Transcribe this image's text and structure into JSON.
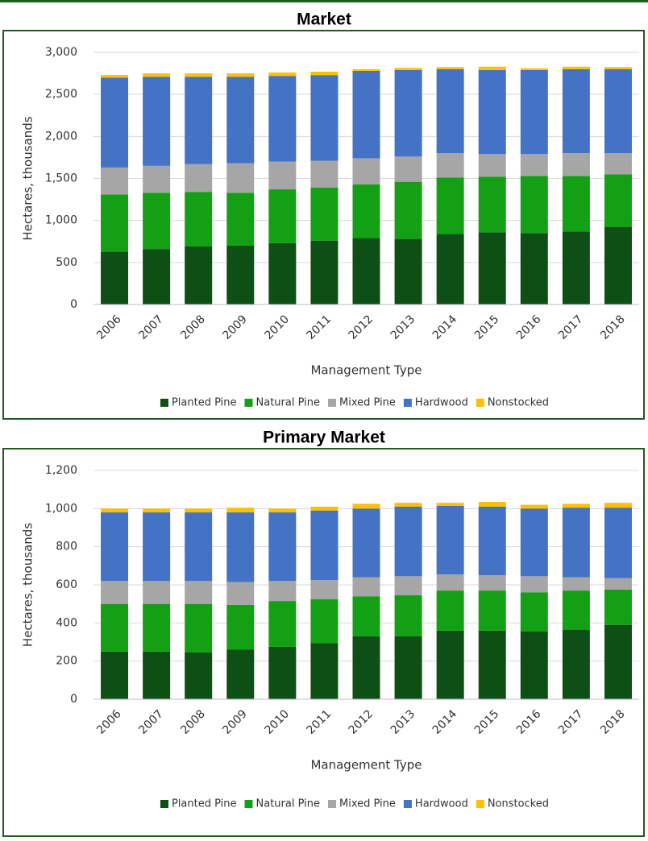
{
  "chart_data": [
    {
      "type": "bar",
      "title": "Market",
      "ylabel": "Hectares, thousands",
      "xlabel": "Management Type",
      "categories": [
        "2006",
        "2007",
        "2008",
        "2009",
        "2010",
        "2011",
        "2012",
        "2013",
        "2014",
        "2015",
        "2016",
        "2017",
        "2018"
      ],
      "series": [
        {
          "name": "Planted Pine",
          "color": "#0d4f14",
          "values": [
            630,
            660,
            690,
            700,
            730,
            760,
            790,
            780,
            840,
            860,
            850,
            870,
            920
          ]
        },
        {
          "name": "Natural Pine",
          "color": "#14a014",
          "values": [
            680,
            670,
            650,
            630,
            640,
            630,
            640,
            680,
            670,
            660,
            680,
            660,
            630
          ]
        },
        {
          "name": "Mixed Pine",
          "color": "#a6a6a6",
          "values": [
            320,
            320,
            330,
            350,
            330,
            320,
            310,
            300,
            290,
            270,
            260,
            270,
            250
          ]
        },
        {
          "name": "Hardwood",
          "color": "#4472c4",
          "values": [
            1070,
            1060,
            1040,
            1030,
            1020,
            1020,
            1040,
            1030,
            1000,
            1000,
            1000,
            1000,
            1000
          ]
        },
        {
          "name": "Nonstocked",
          "color": "#ffc000",
          "values": [
            30,
            40,
            40,
            40,
            40,
            40,
            20,
            25,
            25,
            40,
            20,
            30,
            25
          ]
        }
      ],
      "ylim": [
        0,
        3000
      ],
      "yticks": [
        0,
        500,
        {
          "value": 1000,
          "label": "1,000"
        },
        {
          "value": 1500,
          "label": "1,500"
        },
        {
          "value": 2000,
          "label": "2,000"
        },
        {
          "value": 2500,
          "label": "2,500"
        },
        {
          "value": 3000,
          "label": "3,000"
        }
      ],
      "stacked": true,
      "legend": "bottom"
    },
    {
      "type": "bar",
      "title": "Primary Market",
      "ylabel": "Hectares, thousands",
      "xlabel": "Management Type",
      "categories": [
        "2006",
        "2007",
        "2008",
        "2009",
        "2010",
        "2011",
        "2012",
        "2013",
        "2014",
        "2015",
        "2016",
        "2017",
        "2018"
      ],
      "series": [
        {
          "name": "Planted Pine",
          "color": "#0d4f14",
          "values": [
            250,
            250,
            245,
            260,
            275,
            295,
            330,
            330,
            360,
            360,
            355,
            365,
            390
          ]
        },
        {
          "name": "Natural Pine",
          "color": "#14a014",
          "values": [
            250,
            250,
            255,
            235,
            240,
            230,
            210,
            215,
            210,
            210,
            205,
            205,
            185
          ]
        },
        {
          "name": "Mixed Pine",
          "color": "#a6a6a6",
          "values": [
            120,
            120,
            120,
            120,
            105,
            100,
            100,
            100,
            85,
            80,
            85,
            70,
            60
          ]
        },
        {
          "name": "Hardwood",
          "color": "#4472c4",
          "values": [
            360,
            360,
            360,
            365,
            360,
            365,
            360,
            365,
            360,
            360,
            355,
            365,
            370
          ]
        },
        {
          "name": "Nonstocked",
          "color": "#ffc000",
          "values": [
            20,
            20,
            20,
            25,
            20,
            20,
            25,
            20,
            15,
            25,
            20,
            20,
            25
          ]
        }
      ],
      "ylim": [
        0,
        1200
      ],
      "yticks": [
        0,
        200,
        400,
        600,
        800,
        {
          "value": 1000,
          "label": "1,000"
        },
        {
          "value": 1200,
          "label": "1,200"
        }
      ],
      "stacked": true,
      "legend": "bottom"
    }
  ]
}
